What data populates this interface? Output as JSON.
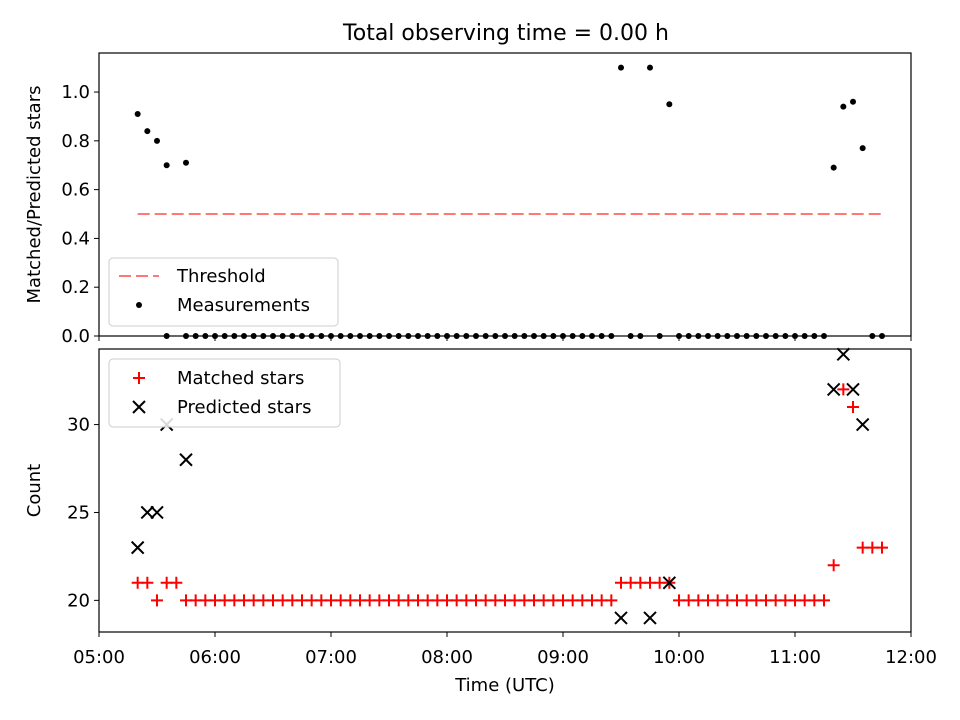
{
  "title": "Total observing time = 0.00 h",
  "chart_data": [
    {
      "type": "scatter",
      "ylabel": "Matched/Predicted stars",
      "xlabel": "",
      "xlim": [
        "05:00",
        "12:00"
      ],
      "ylim": [
        0,
        1.16
      ],
      "x_ticks": [
        "05:00",
        "06:00",
        "07:00",
        "08:00",
        "09:00",
        "10:00",
        "11:00",
        "12:00"
      ],
      "y_ticks": [
        "0.0",
        "0.2",
        "0.4",
        "0.6",
        "0.8",
        "1.0"
      ],
      "legend": {
        "position": "lower-left"
      },
      "threshold": {
        "name": "Threshold",
        "value": 0.5,
        "x_start": "05:20",
        "x_end": "11:45",
        "color": "#ff7777"
      },
      "series": [
        {
          "name": "Measurements",
          "color": "#000000",
          "points": [
            [
              "05:20",
              0.91
            ],
            [
              "05:25",
              0.84
            ],
            [
              "05:30",
              0.8
            ],
            [
              "05:35",
              0.7
            ],
            [
              "05:45",
              0.71
            ],
            [
              "05:35",
              0.0
            ],
            [
              "05:45",
              0.0
            ],
            [
              "05:50",
              0.0
            ],
            [
              "05:55",
              0.0
            ],
            [
              "06:00",
              0.0
            ],
            [
              "06:05",
              0.0
            ],
            [
              "06:10",
              0.0
            ],
            [
              "06:15",
              0.0
            ],
            [
              "06:20",
              0.0
            ],
            [
              "06:25",
              0.0
            ],
            [
              "06:30",
              0.0
            ],
            [
              "06:35",
              0.0
            ],
            [
              "06:40",
              0.0
            ],
            [
              "06:45",
              0.0
            ],
            [
              "06:50",
              0.0
            ],
            [
              "06:55",
              0.0
            ],
            [
              "07:00",
              0.0
            ],
            [
              "07:05",
              0.0
            ],
            [
              "07:10",
              0.0
            ],
            [
              "07:15",
              0.0
            ],
            [
              "07:20",
              0.0
            ],
            [
              "07:25",
              0.0
            ],
            [
              "07:30",
              0.0
            ],
            [
              "07:35",
              0.0
            ],
            [
              "07:40",
              0.0
            ],
            [
              "07:45",
              0.0
            ],
            [
              "07:50",
              0.0
            ],
            [
              "07:55",
              0.0
            ],
            [
              "08:00",
              0.0
            ],
            [
              "08:05",
              0.0
            ],
            [
              "08:10",
              0.0
            ],
            [
              "08:15",
              0.0
            ],
            [
              "08:20",
              0.0
            ],
            [
              "08:25",
              0.0
            ],
            [
              "08:30",
              0.0
            ],
            [
              "08:35",
              0.0
            ],
            [
              "08:40",
              0.0
            ],
            [
              "08:45",
              0.0
            ],
            [
              "08:50",
              0.0
            ],
            [
              "08:55",
              0.0
            ],
            [
              "09:00",
              0.0
            ],
            [
              "09:05",
              0.0
            ],
            [
              "09:10",
              0.0
            ],
            [
              "09:15",
              0.0
            ],
            [
              "09:20",
              0.0
            ],
            [
              "09:25",
              0.0
            ],
            [
              "09:35",
              0.0
            ],
            [
              "09:40",
              0.0
            ],
            [
              "09:50",
              0.0
            ],
            [
              "10:00",
              0.0
            ],
            [
              "10:05",
              0.0
            ],
            [
              "10:10",
              0.0
            ],
            [
              "10:15",
              0.0
            ],
            [
              "10:20",
              0.0
            ],
            [
              "10:25",
              0.0
            ],
            [
              "10:30",
              0.0
            ],
            [
              "10:35",
              0.0
            ],
            [
              "10:40",
              0.0
            ],
            [
              "10:45",
              0.0
            ],
            [
              "10:50",
              0.0
            ],
            [
              "10:55",
              0.0
            ],
            [
              "11:00",
              0.0
            ],
            [
              "11:05",
              0.0
            ],
            [
              "11:10",
              0.0
            ],
            [
              "11:15",
              0.0
            ],
            [
              "11:40",
              0.0
            ],
            [
              "11:45",
              0.0
            ],
            [
              "09:30",
              1.1
            ],
            [
              "09:45",
              1.1
            ],
            [
              "09:55",
              0.95
            ],
            [
              "11:20",
              0.69
            ],
            [
              "11:25",
              0.94
            ],
            [
              "11:30",
              0.96
            ],
            [
              "11:35",
              0.77
            ]
          ]
        }
      ]
    },
    {
      "type": "scatter",
      "ylabel": "Count",
      "xlabel": "Time (UTC)",
      "xlim": [
        "05:00",
        "12:00"
      ],
      "ylim": [
        18.2,
        34.3
      ],
      "x_ticks": [
        "05:00",
        "06:00",
        "07:00",
        "08:00",
        "09:00",
        "10:00",
        "11:00",
        "12:00"
      ],
      "y_ticks": [
        "20",
        "25",
        "30"
      ],
      "legend": {
        "position": "upper-left"
      },
      "series": [
        {
          "name": "Matched stars",
          "marker": "plus",
          "color": "#ff0000",
          "points": [
            [
              "05:20",
              21
            ],
            [
              "05:25",
              21
            ],
            [
              "05:30",
              20
            ],
            [
              "05:35",
              21
            ],
            [
              "05:40",
              21
            ],
            [
              "05:45",
              20
            ],
            [
              "05:50",
              20
            ],
            [
              "05:55",
              20
            ],
            [
              "06:00",
              20
            ],
            [
              "06:05",
              20
            ],
            [
              "06:10",
              20
            ],
            [
              "06:15",
              20
            ],
            [
              "06:20",
              20
            ],
            [
              "06:25",
              20
            ],
            [
              "06:30",
              20
            ],
            [
              "06:35",
              20
            ],
            [
              "06:40",
              20
            ],
            [
              "06:45",
              20
            ],
            [
              "06:50",
              20
            ],
            [
              "06:55",
              20
            ],
            [
              "07:00",
              20
            ],
            [
              "07:05",
              20
            ],
            [
              "07:10",
              20
            ],
            [
              "07:15",
              20
            ],
            [
              "07:20",
              20
            ],
            [
              "07:25",
              20
            ],
            [
              "07:30",
              20
            ],
            [
              "07:35",
              20
            ],
            [
              "07:40",
              20
            ],
            [
              "07:45",
              20
            ],
            [
              "07:50",
              20
            ],
            [
              "07:55",
              20
            ],
            [
              "08:00",
              20
            ],
            [
              "08:05",
              20
            ],
            [
              "08:10",
              20
            ],
            [
              "08:15",
              20
            ],
            [
              "08:20",
              20
            ],
            [
              "08:25",
              20
            ],
            [
              "08:30",
              20
            ],
            [
              "08:35",
              20
            ],
            [
              "08:40",
              20
            ],
            [
              "08:45",
              20
            ],
            [
              "08:50",
              20
            ],
            [
              "08:55",
              20
            ],
            [
              "09:00",
              20
            ],
            [
              "09:05",
              20
            ],
            [
              "09:10",
              20
            ],
            [
              "09:15",
              20
            ],
            [
              "09:20",
              20
            ],
            [
              "09:25",
              20
            ],
            [
              "09:30",
              21
            ],
            [
              "09:35",
              21
            ],
            [
              "09:40",
              21
            ],
            [
              "09:45",
              21
            ],
            [
              "09:50",
              21
            ],
            [
              "09:55",
              21
            ],
            [
              "10:00",
              20
            ],
            [
              "10:05",
              20
            ],
            [
              "10:10",
              20
            ],
            [
              "10:15",
              20
            ],
            [
              "10:20",
              20
            ],
            [
              "10:25",
              20
            ],
            [
              "10:30",
              20
            ],
            [
              "10:35",
              20
            ],
            [
              "10:40",
              20
            ],
            [
              "10:45",
              20
            ],
            [
              "10:50",
              20
            ],
            [
              "10:55",
              20
            ],
            [
              "11:00",
              20
            ],
            [
              "11:05",
              20
            ],
            [
              "11:10",
              20
            ],
            [
              "11:15",
              20
            ],
            [
              "11:20",
              22
            ],
            [
              "11:25",
              32
            ],
            [
              "11:30",
              31
            ],
            [
              "11:35",
              23
            ],
            [
              "11:40",
              23
            ],
            [
              "11:45",
              23
            ]
          ]
        },
        {
          "name": "Predicted stars",
          "marker": "x",
          "color": "#000000",
          "points": [
            [
              "05:20",
              23
            ],
            [
              "05:25",
              25
            ],
            [
              "05:30",
              25
            ],
            [
              "05:35",
              30
            ],
            [
              "05:45",
              28
            ],
            [
              "09:30",
              19
            ],
            [
              "09:45",
              19
            ],
            [
              "09:55",
              21
            ],
            [
              "11:20",
              32
            ],
            [
              "11:25",
              34
            ],
            [
              "11:30",
              32
            ],
            [
              "11:35",
              30
            ]
          ]
        }
      ]
    }
  ]
}
